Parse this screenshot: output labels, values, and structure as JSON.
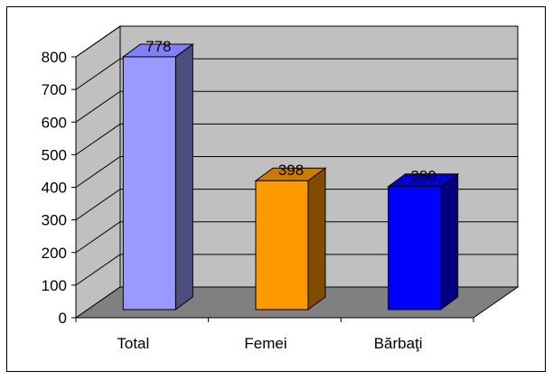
{
  "chart_data": {
    "type": "bar",
    "categories": [
      "Total",
      "Femei",
      "Bărbaţi"
    ],
    "values": [
      778,
      398,
      380
    ],
    "title": "",
    "xlabel": "",
    "ylabel": "",
    "ylim": [
      0,
      800
    ],
    "yticks": [
      0,
      100,
      200,
      300,
      400,
      500,
      600,
      700,
      800
    ],
    "grid": true,
    "legend": "none",
    "colors": {
      "bars": [
        {
          "front": "#9999ff",
          "side": "#4d4d80",
          "top": "#8080ff"
        },
        {
          "front": "#ff9900",
          "side": "#804d00",
          "top": "#cc7a00"
        },
        {
          "front": "#0000ff",
          "side": "#000080",
          "top": "#0000cc"
        }
      ],
      "wall": "#c0c0c0",
      "floor": "#808080"
    }
  }
}
